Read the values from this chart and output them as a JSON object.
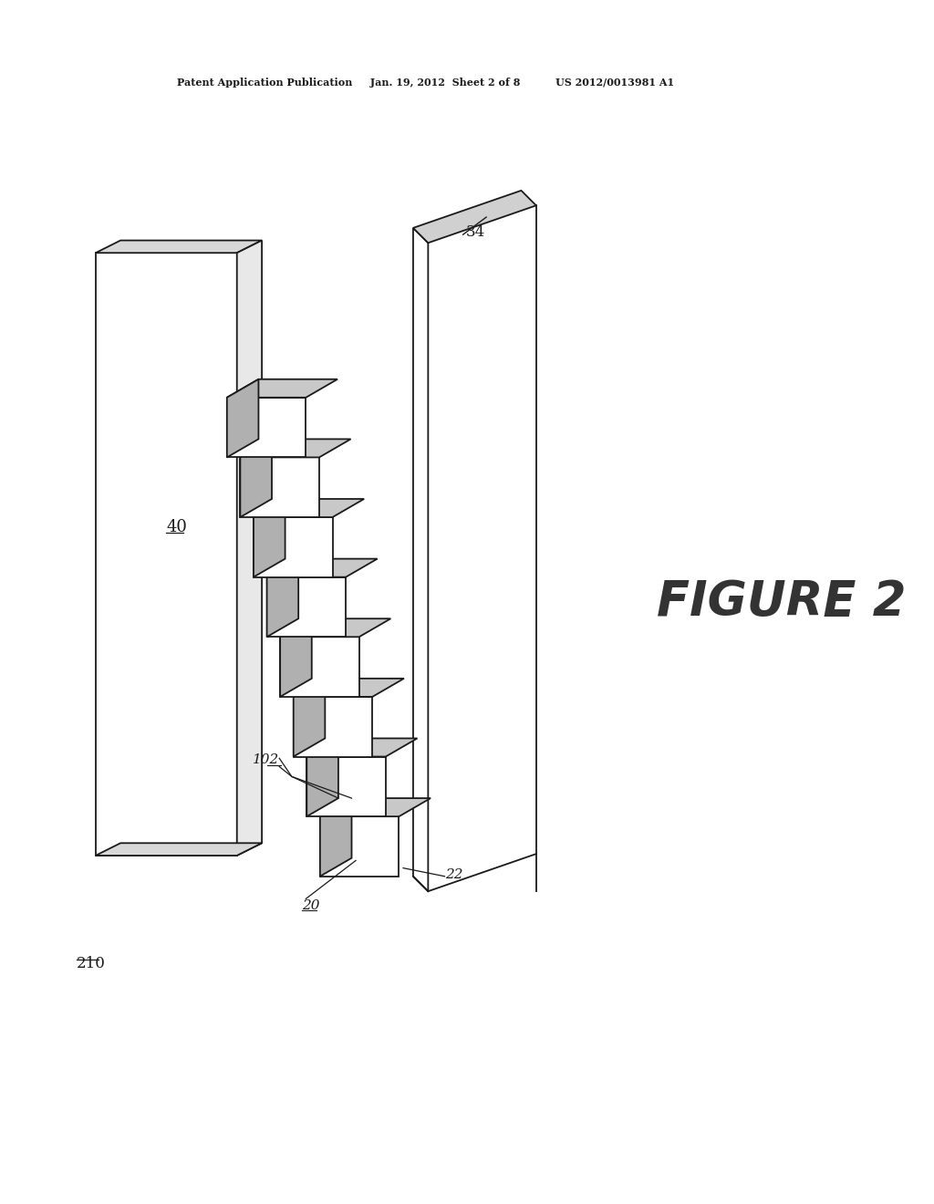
{
  "bg_color": "#ffffff",
  "line_color": "#1a1a1a",
  "top_face_gray": "#c8c8c8",
  "left_face_gray": "#b0b0b0",
  "panel_face_color": "#ffffff",
  "panel_top_color": "#d8d8d8",
  "frame_face_color": "#ffffff",
  "frame_top_color": "#d0d0d0",
  "header_text": "Patent Application Publication     Jan. 19, 2012  Sheet 2 of 8          US 2012/0013981 A1",
  "figure_label": "FIGURE 2",
  "label_40": "40",
  "label_34": "34",
  "label_20": "20",
  "label_22": "22",
  "label_102": "102",
  "label_210": "210",
  "num_cubes": 8,
  "figure_size": [
    10.24,
    13.2
  ],
  "dpi": 100,
  "lw": 1.3
}
